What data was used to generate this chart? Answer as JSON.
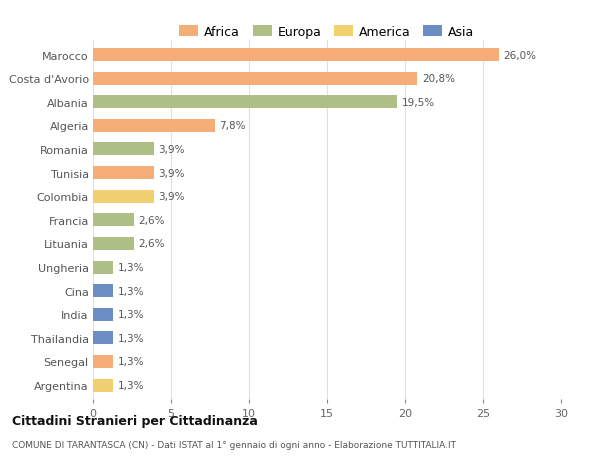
{
  "categories": [
    "Marocco",
    "Costa d'Avorio",
    "Albania",
    "Algeria",
    "Romania",
    "Tunisia",
    "Colombia",
    "Francia",
    "Lituania",
    "Ungheria",
    "Cina",
    "India",
    "Thailandia",
    "Senegal",
    "Argentina"
  ],
  "values": [
    26.0,
    20.8,
    19.5,
    7.8,
    3.9,
    3.9,
    3.9,
    2.6,
    2.6,
    1.3,
    1.3,
    1.3,
    1.3,
    1.3,
    1.3
  ],
  "labels": [
    "26,0%",
    "20,8%",
    "19,5%",
    "7,8%",
    "3,9%",
    "3,9%",
    "3,9%",
    "2,6%",
    "2,6%",
    "1,3%",
    "1,3%",
    "1,3%",
    "1,3%",
    "1,3%",
    "1,3%"
  ],
  "continents": [
    "Africa",
    "Africa",
    "Europa",
    "Africa",
    "Europa",
    "Africa",
    "America",
    "Europa",
    "Europa",
    "Europa",
    "Asia",
    "Asia",
    "Asia",
    "Africa",
    "America"
  ],
  "colors": {
    "Africa": "#F5AE78",
    "Europa": "#ADBF85",
    "America": "#F0D070",
    "Asia": "#6B8DC4"
  },
  "legend_items": [
    "Africa",
    "Europa",
    "America",
    "Asia"
  ],
  "legend_colors": [
    "#F5AE78",
    "#ADBF85",
    "#F0D070",
    "#6B8DC4"
  ],
  "title": "Cittadini Stranieri per Cittadinanza",
  "subtitle": "COMUNE DI TARANTASCA (CN) - Dati ISTAT al 1° gennaio di ogni anno - Elaborazione TUTTITALIA.IT",
  "xlim": [
    0,
    30
  ],
  "xticks": [
    0,
    5,
    10,
    15,
    20,
    25,
    30
  ],
  "bg_color": "#ffffff",
  "grid_color": "#e0e0e0",
  "bar_height": 0.55
}
